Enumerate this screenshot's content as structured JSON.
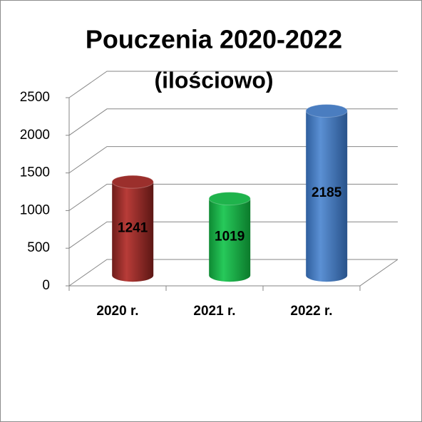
{
  "chart_data": {
    "type": "bar3d",
    "title": "Pouczenia 2020-2022",
    "subtitle": "(ilościowo)",
    "categories": [
      "2020 r.",
      "2021 r.",
      "2022 r."
    ],
    "values": [
      1241,
      1019,
      2185
    ],
    "colors": [
      "#9b2f2c",
      "#1fb34c",
      "#4a7dc0"
    ],
    "ylim": [
      0,
      2500
    ],
    "yticks": [
      0,
      500,
      1000,
      1500,
      2000,
      2500
    ],
    "grid": true
  }
}
